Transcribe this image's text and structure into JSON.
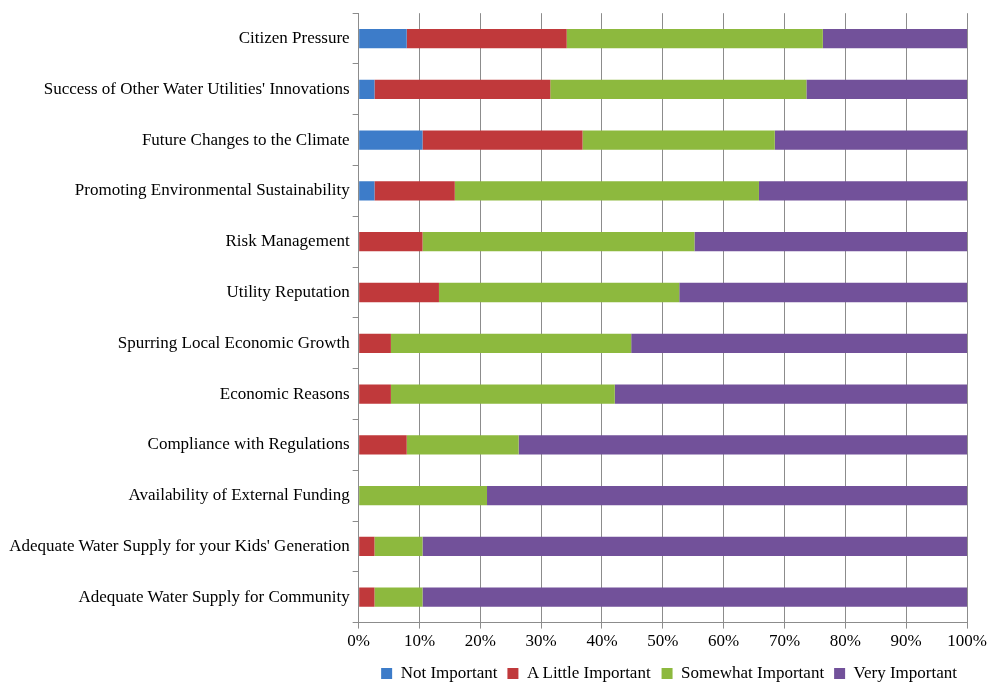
{
  "chart_data": {
    "type": "bar",
    "orientation": "horizontal",
    "stacked": true,
    "categories": [
      "Citizen Pressure",
      "Success of Other Water Utilities' Innovations",
      "Future Changes to the Climate",
      "Promoting Environmental Sustainability",
      "Risk Management",
      "Utility Reputation",
      "Spurring Local Economic Growth",
      "Economic Reasons",
      "Compliance with Regulations",
      "Availability of External Funding",
      "Adequate Water Supply for your Kids' Generation",
      "Adequate Water Supply for Community"
    ],
    "series": [
      {
        "name": "Not Important",
        "color": "#3d7cc9",
        "values": [
          7.9,
          2.6,
          10.5,
          2.6,
          0,
          0,
          0,
          0,
          0,
          0,
          0,
          0
        ]
      },
      {
        "name": "A Little Important",
        "color": "#c0393b",
        "values": [
          26.3,
          28.9,
          26.3,
          13.2,
          10.5,
          13.2,
          5.3,
          5.3,
          7.9,
          0,
          2.6,
          2.6
        ]
      },
      {
        "name": "Somewhat Important",
        "color": "#8db93e",
        "values": [
          42.1,
          42.1,
          31.6,
          50.0,
          44.7,
          39.5,
          39.5,
          36.8,
          18.4,
          21.1,
          7.9,
          7.9
        ]
      },
      {
        "name": "Very Important",
        "color": "#72519a",
        "values": [
          23.7,
          26.4,
          31.6,
          34.2,
          44.8,
          47.3,
          55.2,
          57.9,
          73.7,
          78.9,
          89.5,
          89.5
        ]
      }
    ],
    "xlim": [
      0,
      100
    ],
    "xticks": [
      {
        "value": 0,
        "label": "0%"
      },
      {
        "value": 10,
        "label": "10%"
      },
      {
        "value": 20,
        "label": "20%"
      },
      {
        "value": 30,
        "label": "30%"
      },
      {
        "value": 40,
        "label": "40%"
      },
      {
        "value": 50,
        "label": "50%"
      },
      {
        "value": 60,
        "label": "60%"
      },
      {
        "value": 70,
        "label": "70%"
      },
      {
        "value": 80,
        "label": "80%"
      },
      {
        "value": 90,
        "label": "90%"
      },
      {
        "value": 100,
        "label": "100%"
      }
    ],
    "grid": "x",
    "legend": "bottom"
  }
}
